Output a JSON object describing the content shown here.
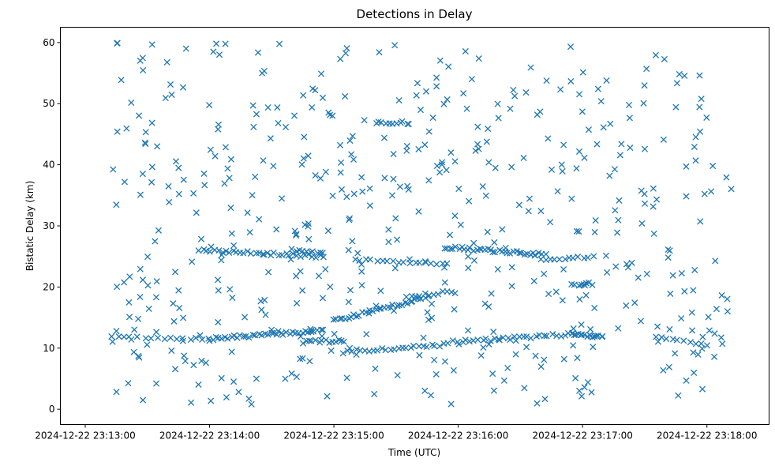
{
  "chart_data": {
    "type": "scatter",
    "title": "Detections in Delay",
    "xlabel": "Time (UTC)",
    "ylabel": "Bistatic Delay (km)",
    "marker": "x",
    "color": "#1f77b4",
    "grid": false,
    "x_range": [
      "2024-12-22 23:12:48",
      "2024-12-22 23:18:30"
    ],
    "ylim": [
      -2.5,
      62.5
    ],
    "x_ticks": [
      "2024-12-22 23:13:00",
      "2024-12-22 23:14:00",
      "2024-12-22 23:15:00",
      "2024-12-22 23:16:00",
      "2024-12-22 23:17:00",
      "2024-12-22 23:18:00"
    ],
    "y_ticks": [
      0,
      10,
      20,
      30,
      40,
      50,
      60
    ],
    "tracks": [
      {
        "t0": "2024-12-22 23:13:13",
        "t1": "2024-12-22 23:14:00",
        "y0": 11.7,
        "y1": 11.4,
        "n": 16
      },
      {
        "t0": "2024-12-22 23:14:00",
        "t1": "2024-12-22 23:14:55",
        "y0": 11.5,
        "y1": 12.9,
        "n": 38
      },
      {
        "t0": "2024-12-22 23:14:45",
        "t1": "2024-12-22 23:15:05",
        "y0": 11.0,
        "y1": 11.2,
        "n": 14
      },
      {
        "t0": "2024-12-22 23:15:05",
        "t1": "2024-12-22 23:15:55",
        "y0": 9.4,
        "y1": 10.6,
        "n": 26
      },
      {
        "t0": "2024-12-22 23:15:58",
        "t1": "2024-12-22 23:16:55",
        "y0": 11.0,
        "y1": 12.3,
        "n": 30
      },
      {
        "t0": "2024-12-22 23:16:55",
        "t1": "2024-12-22 23:17:10",
        "y0": 12.3,
        "y1": 11.8,
        "n": 16
      },
      {
        "t0": "2024-12-22 23:17:35",
        "t1": "2024-12-22 23:18:00",
        "y0": 12.0,
        "y1": 10.6,
        "n": 10
      },
      {
        "t0": "2024-12-22 23:13:55",
        "t1": "2024-12-22 23:14:55",
        "y0": 26.0,
        "y1": 25.0,
        "n": 34
      },
      {
        "t0": "2024-12-22 23:14:40",
        "t1": "2024-12-22 23:14:55",
        "y0": 26.0,
        "y1": 25.6,
        "n": 10
      },
      {
        "t0": "2024-12-22 23:15:10",
        "t1": "2024-12-22 23:15:55",
        "y0": 24.6,
        "y1": 23.7,
        "n": 18
      },
      {
        "t0": "2024-12-22 23:15:55",
        "t1": "2024-12-22 23:16:40",
        "y0": 26.5,
        "y1": 25.3,
        "n": 34
      },
      {
        "t0": "2024-12-22 23:16:40",
        "t1": "2024-12-22 23:17:05",
        "y0": 24.6,
        "y1": 24.8,
        "n": 12
      },
      {
        "t0": "2024-12-22 23:15:00",
        "t1": "2024-12-22 23:15:45",
        "y0": 14.5,
        "y1": 18.3,
        "n": 34
      },
      {
        "t0": "2024-12-22 23:15:35",
        "t1": "2024-12-22 23:15:55",
        "y0": 18.4,
        "y1": 19.2,
        "n": 10
      },
      {
        "t0": "2024-12-22 23:15:20",
        "t1": "2024-12-22 23:15:35",
        "y0": 46.8,
        "y1": 46.9,
        "n": 10
      },
      {
        "t0": "2024-12-22 23:16:55",
        "t1": "2024-12-22 23:17:05",
        "y0": 20.4,
        "y1": 20.5,
        "n": 8
      }
    ],
    "scatter": {
      "n": 520,
      "seed": 7,
      "t0": "2024-12-22 23:13:13",
      "t1": "2024-12-22 23:18:12",
      "y_min": 0.8,
      "y_max": 60.0
    }
  }
}
